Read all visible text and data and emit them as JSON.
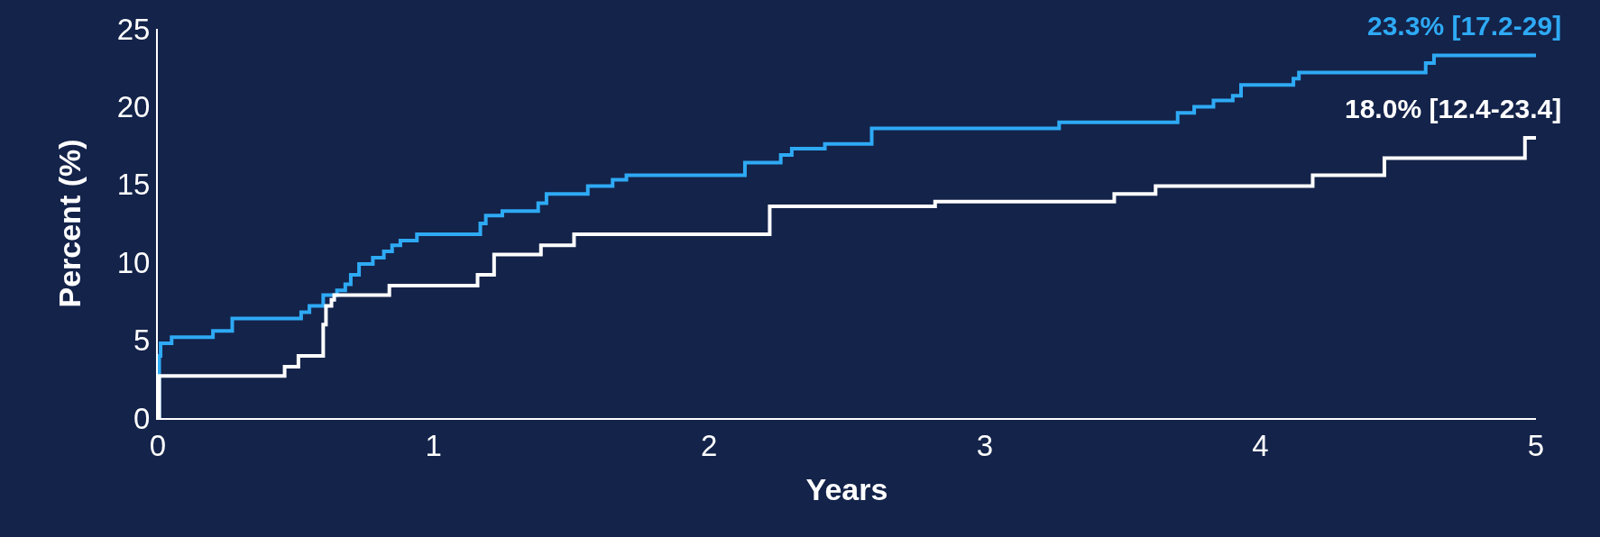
{
  "chart_data": {
    "type": "step",
    "xlabel": "Years",
    "ylabel": "Percent (%)",
    "xlim": [
      0,
      5
    ],
    "ylim": [
      0,
      25
    ],
    "xticks": [
      0,
      1,
      2,
      3,
      4,
      5
    ],
    "yticks": [
      0,
      5,
      10,
      15,
      20,
      25
    ],
    "grid": false,
    "marker": "none",
    "line_style": "solid",
    "series": [
      {
        "color": "#2eaaf5",
        "x": [
          0,
          0.005,
          0.01,
          0.05,
          0.2,
          0.27,
          0.52,
          0.55,
          0.6,
          0.65,
          0.68,
          0.7,
          0.73,
          0.78,
          0.82,
          0.85,
          0.88,
          0.94,
          1.17,
          1.19,
          1.25,
          1.38,
          1.41,
          1.56,
          1.65,
          1.7,
          2.13,
          2.26,
          2.3,
          2.42,
          2.59,
          3.27,
          3.7,
          3.76,
          3.83,
          3.9,
          3.93,
          4.12,
          4.14,
          4.6,
          4.63,
          5.0
        ],
        "values": [
          0,
          4.0,
          4.8,
          5.2,
          5.6,
          6.4,
          6.8,
          7.2,
          7.9,
          8.2,
          8.6,
          9.2,
          9.9,
          10.3,
          10.7,
          11.1,
          11.4,
          11.8,
          12.5,
          13.0,
          13.3,
          13.8,
          14.4,
          14.9,
          15.3,
          15.6,
          16.4,
          16.9,
          17.3,
          17.6,
          18.6,
          19.0,
          19.6,
          20.0,
          20.4,
          20.7,
          21.4,
          21.8,
          22.2,
          22.8,
          23.3,
          23.3
        ]
      },
      {
        "color": "#ffffff",
        "x": [
          0,
          0.005,
          0.46,
          0.51,
          0.6,
          0.61,
          0.63,
          0.64,
          0.84,
          1.16,
          1.22,
          1.39,
          1.51,
          2.22,
          2.82,
          3.47,
          3.62,
          4.19,
          4.45,
          4.96,
          5.0
        ],
        "values": [
          0,
          2.7,
          3.3,
          4.0,
          6.0,
          7.2,
          7.6,
          7.9,
          8.5,
          9.2,
          10.5,
          11.1,
          11.8,
          13.6,
          13.9,
          14.4,
          14.9,
          15.6,
          16.7,
          18.0,
          18.0
        ]
      }
    ],
    "annotations": [
      {
        "text": "23.3% [17.2-29]",
        "x": 5.0,
        "y": 23.3
      },
      {
        "text": "18.0% [12.4-23.4]",
        "x": 5.0,
        "y": 18.0
      }
    ]
  }
}
